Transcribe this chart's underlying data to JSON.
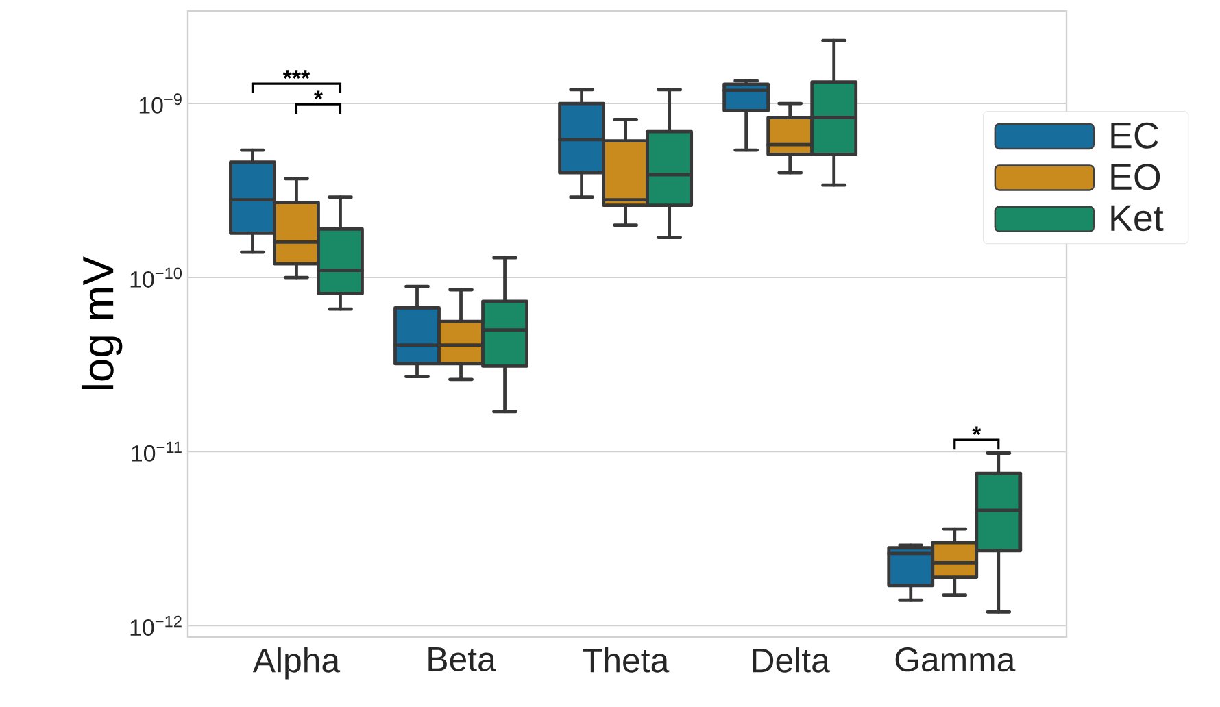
{
  "chart_data": {
    "type": "box",
    "ylabel": "log mV",
    "categories": [
      "Alpha",
      "Beta",
      "Theta",
      "Delta",
      "Gamma"
    ],
    "log": "y",
    "ylim": [
      8.6e-13,
      3.4e-09
    ],
    "yticks": [
      {
        "value": 1e-12,
        "label": "10$^{−12}$"
      },
      {
        "value": 1e-11,
        "label": "10$^{−11}$"
      },
      {
        "value": 1e-10,
        "label": "10$^{−10}$"
      },
      {
        "value": 1e-09,
        "label": "10$^{−9}$"
      }
    ],
    "grid": "y",
    "legend": "right",
    "series": [
      {
        "name": "EC",
        "color": "#176d9c",
        "boxes": [
          {
            "low": 1.4e-10,
            "q1": 1.8e-10,
            "median": 2.8e-10,
            "q3": 4.6e-10,
            "high": 5.4e-10
          },
          {
            "low": 2.7e-11,
            "q1": 3.2e-11,
            "median": 4.1e-11,
            "q3": 6.7e-11,
            "high": 8.9e-11
          },
          {
            "low": 2.9e-10,
            "q1": 4e-10,
            "median": 6.2e-10,
            "q3": 1e-09,
            "high": 1.2e-09
          },
          {
            "low": 5.4e-10,
            "q1": 9.1e-10,
            "median": 1.19e-09,
            "q3": 1.29e-09,
            "high": 1.35e-09
          },
          {
            "low": 1.4e-12,
            "q1": 1.7e-12,
            "median": 2.6e-12,
            "q3": 2.8e-12,
            "high": 2.9e-12
          }
        ]
      },
      {
        "name": "EO",
        "color": "#c98a1e",
        "boxes": [
          {
            "low": 1e-10,
            "q1": 1.2e-10,
            "median": 1.6e-10,
            "q3": 2.7e-10,
            "high": 3.7e-10
          },
          {
            "low": 2.6e-11,
            "q1": 3.2e-11,
            "median": 4.1e-11,
            "q3": 5.6e-11,
            "high": 8.5e-11
          },
          {
            "low": 2e-10,
            "q1": 2.6e-10,
            "median": 2.8e-10,
            "q3": 6.1e-10,
            "high": 8.1e-10
          },
          {
            "low": 4e-10,
            "q1": 5.1e-10,
            "median": 5.8e-10,
            "q3": 8.3e-10,
            "high": 1e-09
          },
          {
            "low": 1.5e-12,
            "q1": 1.9e-12,
            "median": 2.3e-12,
            "q3": 3e-12,
            "high": 3.6e-12
          }
        ]
      },
      {
        "name": "Ket",
        "color": "#1a8a66",
        "boxes": [
          {
            "low": 6.6e-11,
            "q1": 8.1e-11,
            "median": 1.1e-10,
            "q3": 1.9e-10,
            "high": 2.9e-10
          },
          {
            "low": 1.7e-11,
            "q1": 3.1e-11,
            "median": 5e-11,
            "q3": 7.3e-11,
            "high": 1.3e-10
          },
          {
            "low": 1.7e-10,
            "q1": 2.6e-10,
            "median": 3.9e-10,
            "q3": 6.9e-10,
            "high": 1.2e-09
          },
          {
            "low": 3.4e-10,
            "q1": 5.1e-10,
            "median": 8.3e-10,
            "q3": 1.33e-09,
            "high": 2.3e-09
          },
          {
            "low": 1.2e-12,
            "q1": 2.7e-12,
            "median": 4.6e-12,
            "q3": 7.5e-12,
            "high": 9.8e-12
          }
        ]
      }
    ],
    "annotations": [
      "***",
      "*",
      "*"
    ]
  }
}
